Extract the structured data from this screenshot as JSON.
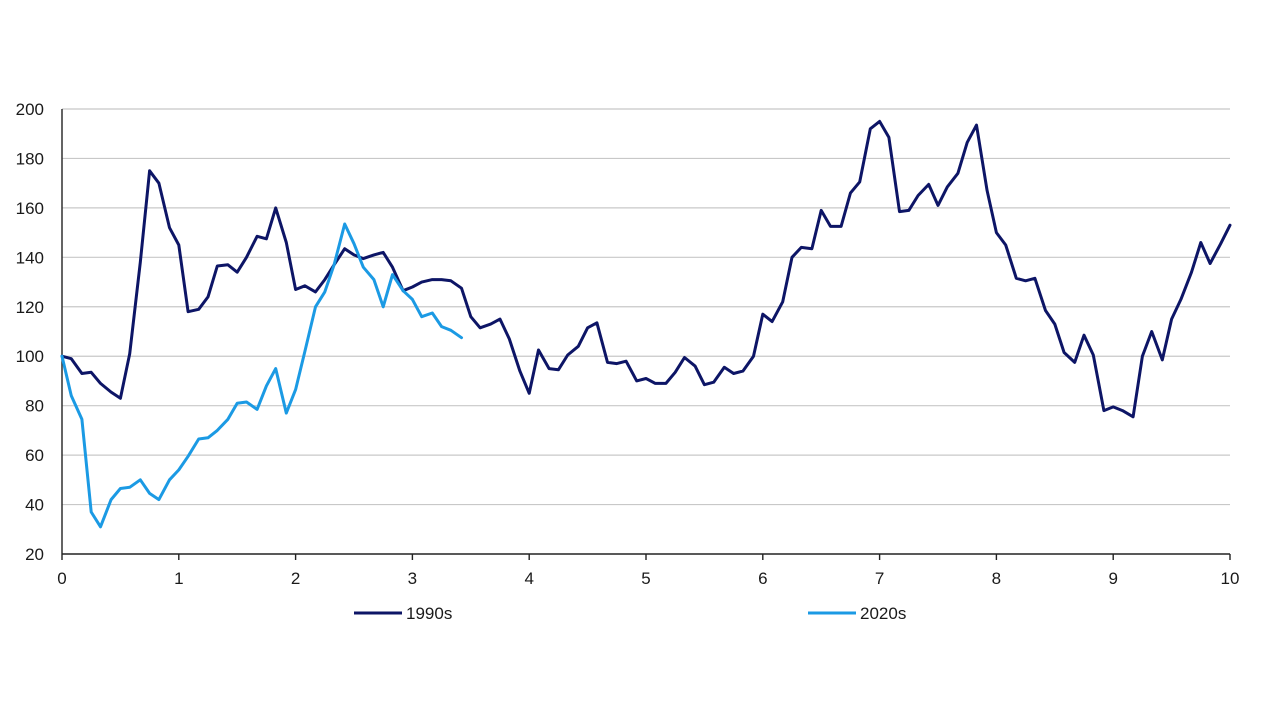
{
  "chart_data": {
    "type": "line",
    "title": "",
    "xlabel": "",
    "ylabel": "",
    "xlim": [
      0,
      10
    ],
    "ylim": [
      20,
      200
    ],
    "x_ticks": [
      0,
      1,
      2,
      3,
      4,
      5,
      6,
      7,
      8,
      9,
      10
    ],
    "y_ticks": [
      20,
      40,
      60,
      80,
      100,
      120,
      140,
      160,
      180,
      200
    ],
    "grid": "horizontal",
    "legend_position": "bottom",
    "series": [
      {
        "name": "1990s",
        "color": "#0d1566",
        "points": [
          [
            0,
            100
          ],
          [
            0.08,
            99
          ],
          [
            0.17,
            93
          ],
          [
            0.25,
            93.5
          ],
          [
            0.33,
            89
          ],
          [
            0.42,
            85.5
          ],
          [
            0.5,
            83
          ],
          [
            0.58,
            101
          ],
          [
            0.67,
            138
          ],
          [
            0.75,
            175
          ],
          [
            0.83,
            170
          ],
          [
            0.92,
            152
          ],
          [
            1.0,
            145
          ],
          [
            1.08,
            118
          ],
          [
            1.17,
            119
          ],
          [
            1.25,
            124
          ],
          [
            1.33,
            136.5
          ],
          [
            1.42,
            137
          ],
          [
            1.5,
            134
          ],
          [
            1.58,
            140
          ],
          [
            1.67,
            148.5
          ],
          [
            1.75,
            147.5
          ],
          [
            1.83,
            160
          ],
          [
            1.92,
            146
          ],
          [
            2.0,
            127
          ],
          [
            2.08,
            128.5
          ],
          [
            2.17,
            126
          ],
          [
            2.25,
            131
          ],
          [
            2.33,
            137
          ],
          [
            2.42,
            143.5
          ],
          [
            2.5,
            141
          ],
          [
            2.58,
            139.5
          ],
          [
            2.67,
            141
          ],
          [
            2.75,
            142
          ],
          [
            2.83,
            136
          ],
          [
            2.92,
            126.5
          ],
          [
            3.0,
            128
          ],
          [
            3.08,
            130
          ],
          [
            3.17,
            131
          ],
          [
            3.25,
            131
          ],
          [
            3.33,
            130.5
          ],
          [
            3.42,
            127.5
          ],
          [
            3.5,
            116
          ],
          [
            3.58,
            111.5
          ],
          [
            3.67,
            113
          ],
          [
            3.75,
            115
          ],
          [
            3.83,
            107
          ],
          [
            3.92,
            94
          ],
          [
            4.0,
            85
          ],
          [
            4.08,
            102.5
          ],
          [
            4.17,
            95
          ],
          [
            4.25,
            94.5
          ],
          [
            4.33,
            100.5
          ],
          [
            4.42,
            104
          ],
          [
            4.5,
            111.5
          ],
          [
            4.58,
            113.5
          ],
          [
            4.67,
            97.5
          ],
          [
            4.75,
            97
          ],
          [
            4.83,
            98
          ],
          [
            4.92,
            90
          ],
          [
            5.0,
            91
          ],
          [
            5.08,
            89
          ],
          [
            5.17,
            89
          ],
          [
            5.25,
            93.5
          ],
          [
            5.33,
            99.5
          ],
          [
            5.42,
            96
          ],
          [
            5.5,
            88.5
          ],
          [
            5.58,
            89.5
          ],
          [
            5.67,
            95.5
          ],
          [
            5.75,
            93
          ],
          [
            5.83,
            94
          ],
          [
            5.92,
            100
          ],
          [
            6.0,
            117
          ],
          [
            6.08,
            114
          ],
          [
            6.17,
            122
          ],
          [
            6.25,
            140
          ],
          [
            6.33,
            144
          ],
          [
            6.42,
            143.5
          ],
          [
            6.5,
            159
          ],
          [
            6.58,
            152.5
          ],
          [
            6.67,
            152.5
          ],
          [
            6.75,
            166
          ],
          [
            6.83,
            170.5
          ],
          [
            6.92,
            192
          ],
          [
            7.0,
            195
          ],
          [
            7.08,
            188.5
          ],
          [
            7.17,
            158.5
          ],
          [
            7.25,
            159
          ],
          [
            7.33,
            165
          ],
          [
            7.42,
            169.5
          ],
          [
            7.5,
            161
          ],
          [
            7.58,
            168.5
          ],
          [
            7.67,
            174
          ],
          [
            7.75,
            186.5
          ],
          [
            7.83,
            193.5
          ],
          [
            7.92,
            167
          ],
          [
            8.0,
            150
          ],
          [
            8.08,
            145
          ],
          [
            8.17,
            131.5
          ],
          [
            8.25,
            130.5
          ],
          [
            8.33,
            131.5
          ],
          [
            8.42,
            118.5
          ],
          [
            8.5,
            113
          ],
          [
            8.58,
            101.5
          ],
          [
            8.67,
            97.5
          ],
          [
            8.75,
            108.5
          ],
          [
            8.83,
            100.5
          ],
          [
            8.92,
            78
          ],
          [
            9.0,
            79.5
          ],
          [
            9.08,
            78
          ],
          [
            9.17,
            75.5
          ],
          [
            9.25,
            100
          ],
          [
            9.33,
            110
          ],
          [
            9.42,
            98.5
          ],
          [
            9.5,
            115
          ],
          [
            9.58,
            123
          ],
          [
            9.67,
            134
          ],
          [
            9.75,
            146
          ],
          [
            9.83,
            137.5
          ],
          [
            9.92,
            145.5
          ],
          [
            10.0,
            153
          ]
        ]
      },
      {
        "name": "2020s",
        "color": "#1b9ae4",
        "points": [
          [
            0,
            100
          ],
          [
            0.08,
            84
          ],
          [
            0.17,
            74.5
          ],
          [
            0.25,
            37
          ],
          [
            0.33,
            31
          ],
          [
            0.42,
            42
          ],
          [
            0.5,
            46.5
          ],
          [
            0.58,
            47
          ],
          [
            0.67,
            50
          ],
          [
            0.75,
            44.5
          ],
          [
            0.83,
            42
          ],
          [
            0.92,
            50
          ],
          [
            1.0,
            54
          ],
          [
            1.08,
            59.5
          ],
          [
            1.17,
            66.5
          ],
          [
            1.25,
            67
          ],
          [
            1.33,
            70
          ],
          [
            1.42,
            74.5
          ],
          [
            1.5,
            81
          ],
          [
            1.58,
            81.5
          ],
          [
            1.67,
            78.5
          ],
          [
            1.75,
            88
          ],
          [
            1.83,
            95
          ],
          [
            1.92,
            77
          ],
          [
            2.0,
            86.5
          ],
          [
            2.08,
            102
          ],
          [
            2.17,
            120
          ],
          [
            2.25,
            126
          ],
          [
            2.33,
            137
          ],
          [
            2.42,
            153.5
          ],
          [
            2.5,
            145.5
          ],
          [
            2.58,
            136
          ],
          [
            2.67,
            131
          ],
          [
            2.75,
            120
          ],
          [
            2.83,
            133
          ],
          [
            2.92,
            126.5
          ],
          [
            3.0,
            123
          ],
          [
            3.08,
            116
          ],
          [
            3.17,
            117.5
          ],
          [
            3.25,
            112
          ],
          [
            3.33,
            110.5
          ],
          [
            3.42,
            107.5
          ]
        ]
      }
    ]
  }
}
